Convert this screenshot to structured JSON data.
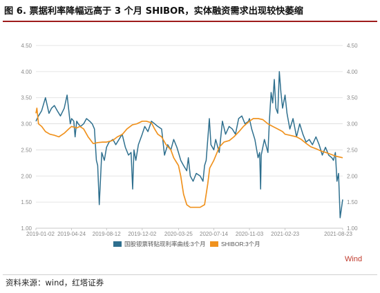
{
  "title": "图 6. 票据利率降幅远高于 3 个月 SHIBOR，实体融资需求出现较快萎缩",
  "source": "资料来源：wind，红塔证券",
  "watermark": "Wind",
  "colors": {
    "series1": "#2e6f8e",
    "series2": "#f0921e",
    "grid": "#dcdcdc",
    "axis_text": "#8a8a8a",
    "watermark": "#c0392b",
    "title_rule": "#9e1b1b"
  },
  "chart_data": {
    "type": "line",
    "title": "",
    "xlabel": "",
    "ylabel": "",
    "ylim": [
      1.0,
      4.5
    ],
    "yticks": [
      "1.00",
      "1.50",
      "2.00",
      "2.50",
      "3.00",
      "3.50",
      "4.00",
      "4.50"
    ],
    "ylim_right": [
      1.0,
      4.5
    ],
    "yticks_right": [
      "1.00",
      "1.50",
      "2.00",
      "2.50",
      "3.00",
      "3.50",
      "4.00",
      "4.50"
    ],
    "xlim": [
      "2019-01-02",
      "2021-08-23"
    ],
    "xticks": [
      "2019-01-02",
      "2019-04-24",
      "2019-08-12",
      "2019-12-02",
      "2020-03-25",
      "2020-07-14",
      "2020-11-03",
      "2021-02-23",
      "2021-08-23"
    ],
    "grid": "horizontal",
    "legend": "bottom-center",
    "series": [
      {
        "name": "国股银票转贴现利率曲线:3个月",
        "axis": "left",
        "x": [
          "2019-01-02",
          "2019-01-10",
          "2019-01-20",
          "2019-02-01",
          "2019-02-12",
          "2019-02-20",
          "2019-03-01",
          "2019-03-10",
          "2019-03-20",
          "2019-04-01",
          "2019-04-10",
          "2019-04-20",
          "2019-04-24",
          "2019-05-01",
          "2019-05-05",
          "2019-05-10",
          "2019-05-15",
          "2019-05-22",
          "2019-06-01",
          "2019-06-10",
          "2019-06-20",
          "2019-06-28",
          "2019-07-05",
          "2019-07-08",
          "2019-07-11",
          "2019-07-15",
          "2019-07-20",
          "2019-07-28",
          "2019-08-05",
          "2019-08-12",
          "2019-08-20",
          "2019-09-01",
          "2019-09-10",
          "2019-09-20",
          "2019-09-30",
          "2019-10-10",
          "2019-10-20",
          "2019-10-28",
          "2019-11-02",
          "2019-11-06",
          "2019-11-12",
          "2019-11-20",
          "2019-12-02",
          "2019-12-10",
          "2019-12-20",
          "2019-12-31",
          "2020-01-10",
          "2020-01-20",
          "2020-02-01",
          "2020-02-10",
          "2020-02-20",
          "2020-03-01",
          "2020-03-10",
          "2020-03-20",
          "2020-03-25",
          "2020-04-01",
          "2020-04-10",
          "2020-04-20",
          "2020-04-25",
          "2020-05-01",
          "2020-05-10",
          "2020-05-20",
          "2020-06-01",
          "2020-06-10",
          "2020-06-15",
          "2020-06-20",
          "2020-06-30",
          "2020-07-05",
          "2020-07-14",
          "2020-07-20",
          "2020-07-31",
          "2020-08-10",
          "2020-08-20",
          "2020-08-31",
          "2020-09-10",
          "2020-09-20",
          "2020-09-30",
          "2020-10-10",
          "2020-10-20",
          "2020-10-31",
          "2020-11-03",
          "2020-11-10",
          "2020-11-20",
          "2020-11-30",
          "2020-12-05",
          "2020-12-08",
          "2020-12-10",
          "2020-12-15",
          "2020-12-20",
          "2020-12-31",
          "2021-01-05",
          "2021-01-10",
          "2021-01-15",
          "2021-01-20",
          "2021-01-25",
          "2021-01-31",
          "2021-02-05",
          "2021-02-10",
          "2021-02-15",
          "2021-02-23",
          "2021-03-01",
          "2021-03-10",
          "2021-03-20",
          "2021-03-31",
          "2021-04-10",
          "2021-04-20",
          "2021-04-30",
          "2021-05-10",
          "2021-05-20",
          "2021-05-31",
          "2021-06-10",
          "2021-06-20",
          "2021-06-30",
          "2021-07-10",
          "2021-07-20",
          "2021-07-25",
          "2021-07-31",
          "2021-08-05",
          "2021-08-10",
          "2021-08-15",
          "2021-08-23"
        ],
        "values": [
          3.05,
          3.15,
          3.25,
          3.5,
          3.2,
          3.3,
          3.35,
          3.25,
          3.15,
          3.3,
          3.55,
          3.0,
          3.1,
          3.05,
          2.75,
          3.05,
          3.0,
          2.95,
          3.0,
          3.1,
          3.05,
          3.0,
          2.9,
          2.6,
          2.3,
          2.2,
          1.45,
          2.45,
          2.3,
          2.55,
          2.65,
          2.7,
          2.6,
          2.7,
          2.8,
          2.55,
          2.4,
          2.45,
          1.75,
          2.5,
          2.3,
          2.6,
          2.8,
          2.95,
          2.85,
          3.05,
          3.0,
          2.95,
          2.9,
          2.4,
          2.6,
          2.5,
          2.7,
          2.55,
          2.45,
          2.3,
          2.2,
          2.1,
          2.35,
          2.0,
          1.9,
          2.05,
          2.0,
          1.9,
          2.2,
          2.3,
          3.1,
          2.6,
          2.5,
          2.7,
          2.45,
          3.05,
          2.8,
          2.95,
          2.9,
          2.8,
          3.1,
          3.15,
          3.0,
          3.05,
          3.1,
          2.9,
          2.7,
          2.35,
          2.45,
          1.75,
          2.4,
          2.55,
          2.7,
          2.45,
          3.1,
          3.6,
          3.4,
          3.85,
          3.3,
          3.2,
          4.0,
          3.6,
          3.3,
          3.55,
          3.2,
          2.9,
          3.1,
          2.75,
          3.0,
          2.8,
          2.65,
          2.7,
          2.6,
          2.75,
          2.6,
          2.4,
          2.55,
          2.4,
          2.35,
          2.3,
          2.45,
          1.9,
          2.05,
          1.2,
          1.55
        ]
      },
      {
        "name": "SHIBOR:3个月",
        "axis": "right",
        "x": [
          "2019-01-02",
          "2019-01-05",
          "2019-01-10",
          "2019-01-20",
          "2019-02-01",
          "2019-02-15",
          "2019-03-01",
          "2019-03-15",
          "2019-04-01",
          "2019-04-15",
          "2019-04-24",
          "2019-05-10",
          "2019-05-20",
          "2019-06-01",
          "2019-06-15",
          "2019-07-01",
          "2019-07-15",
          "2019-07-31",
          "2019-08-12",
          "2019-08-31",
          "2019-09-15",
          "2019-10-01",
          "2019-10-15",
          "2019-11-01",
          "2019-11-15",
          "2019-12-02",
          "2019-12-15",
          "2019-12-31",
          "2020-01-10",
          "2020-01-20",
          "2020-02-01",
          "2020-02-15",
          "2020-03-01",
          "2020-03-10",
          "2020-03-25",
          "2020-04-01",
          "2020-04-10",
          "2020-04-20",
          "2020-05-01",
          "2020-05-15",
          "2020-06-01",
          "2020-06-15",
          "2020-06-25",
          "2020-07-01",
          "2020-07-14",
          "2020-07-31",
          "2020-08-15",
          "2020-09-01",
          "2020-09-15",
          "2020-10-01",
          "2020-10-15",
          "2020-11-03",
          "2020-11-15",
          "2020-12-01",
          "2020-12-15",
          "2020-12-31",
          "2021-01-15",
          "2021-01-31",
          "2021-02-15",
          "2021-02-23",
          "2021-03-10",
          "2021-03-31",
          "2021-04-15",
          "2021-05-01",
          "2021-05-15",
          "2021-06-01",
          "2021-06-15",
          "2021-07-01",
          "2021-07-15",
          "2021-08-01",
          "2021-08-23"
        ],
        "values": [
          3.2,
          3.3,
          3.0,
          2.95,
          2.85,
          2.8,
          2.78,
          2.75,
          2.82,
          2.9,
          2.95,
          2.92,
          2.95,
          2.9,
          2.75,
          2.62,
          2.64,
          2.65,
          2.65,
          2.68,
          2.75,
          2.8,
          2.9,
          2.98,
          3.0,
          3.05,
          3.05,
          3.02,
          2.9,
          2.8,
          2.75,
          2.6,
          2.5,
          2.35,
          2.2,
          2.0,
          1.65,
          1.45,
          1.4,
          1.4,
          1.4,
          1.45,
          1.85,
          2.15,
          2.3,
          2.55,
          2.65,
          2.68,
          2.75,
          2.85,
          2.95,
          3.05,
          3.1,
          3.1,
          3.08,
          3.0,
          2.95,
          2.9,
          2.85,
          2.8,
          2.78,
          2.75,
          2.7,
          2.62,
          2.56,
          2.52,
          2.48,
          2.45,
          2.42,
          2.38,
          2.35
        ]
      }
    ]
  }
}
